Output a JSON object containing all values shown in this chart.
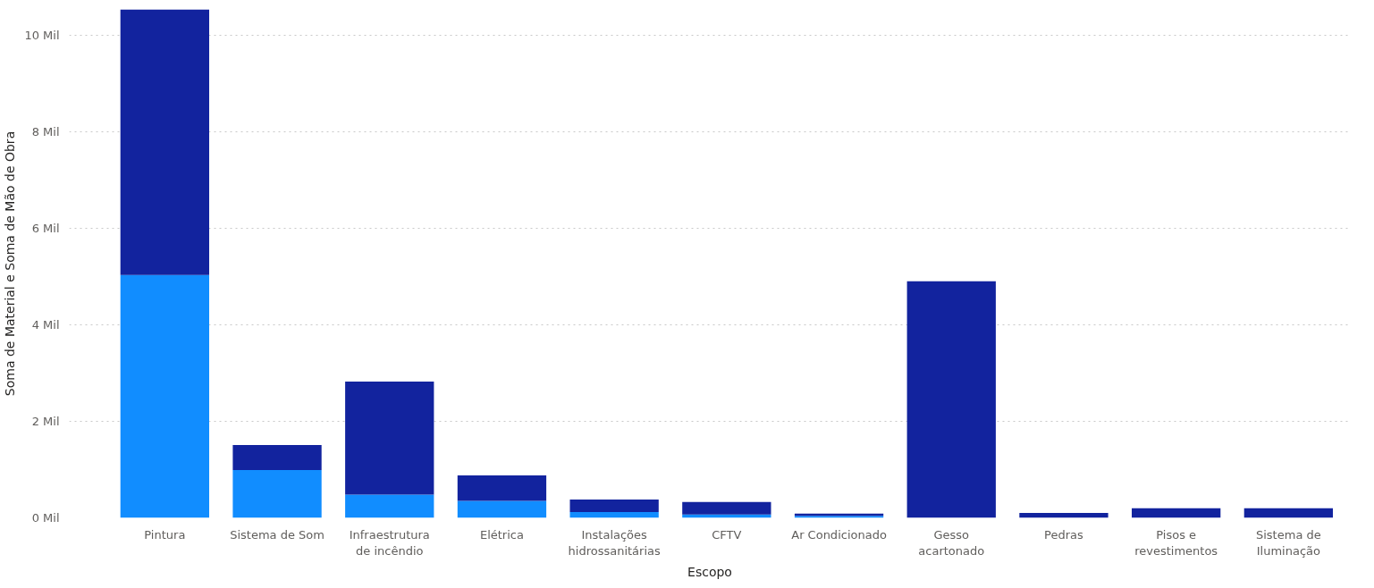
{
  "chart_data": {
    "type": "bar",
    "stacked": true,
    "xlabel": "Escopo",
    "ylabel": "Soma de Material e Soma de Mão de Obra",
    "categories": [
      "Pintura",
      "Sistema de Som",
      "Infraestrutura de incêndio",
      "Elétrica",
      "Instalações hidrossanitárias",
      "CFTV",
      "Ar Condicionado",
      "Gesso acartonado",
      "Pedras",
      "Pisos e revestimentos",
      "Sistema de Iluminação"
    ],
    "series": [
      {
        "color": "#118dff",
        "values": [
          5.03,
          0.99,
          0.48,
          0.35,
          0.12,
          0.07,
          0.04,
          0,
          0,
          0,
          0
        ]
      },
      {
        "color": "#12239e",
        "values": [
          5.5,
          0.52,
          2.34,
          0.53,
          0.26,
          0.26,
          0.05,
          4.9,
          0.1,
          0.2,
          0.2
        ]
      }
    ],
    "ylim": [
      0,
      10.53
    ],
    "yticks": [
      {
        "value": 0,
        "label": "0 Mil"
      },
      {
        "value": 2,
        "label": "2 Mil"
      },
      {
        "value": 4,
        "label": "4 Mil"
      },
      {
        "value": 6,
        "label": "6 Mil"
      },
      {
        "value": 8,
        "label": "8 Mil"
      },
      {
        "value": 10,
        "label": "10 Mil"
      }
    ],
    "grid": "y"
  }
}
